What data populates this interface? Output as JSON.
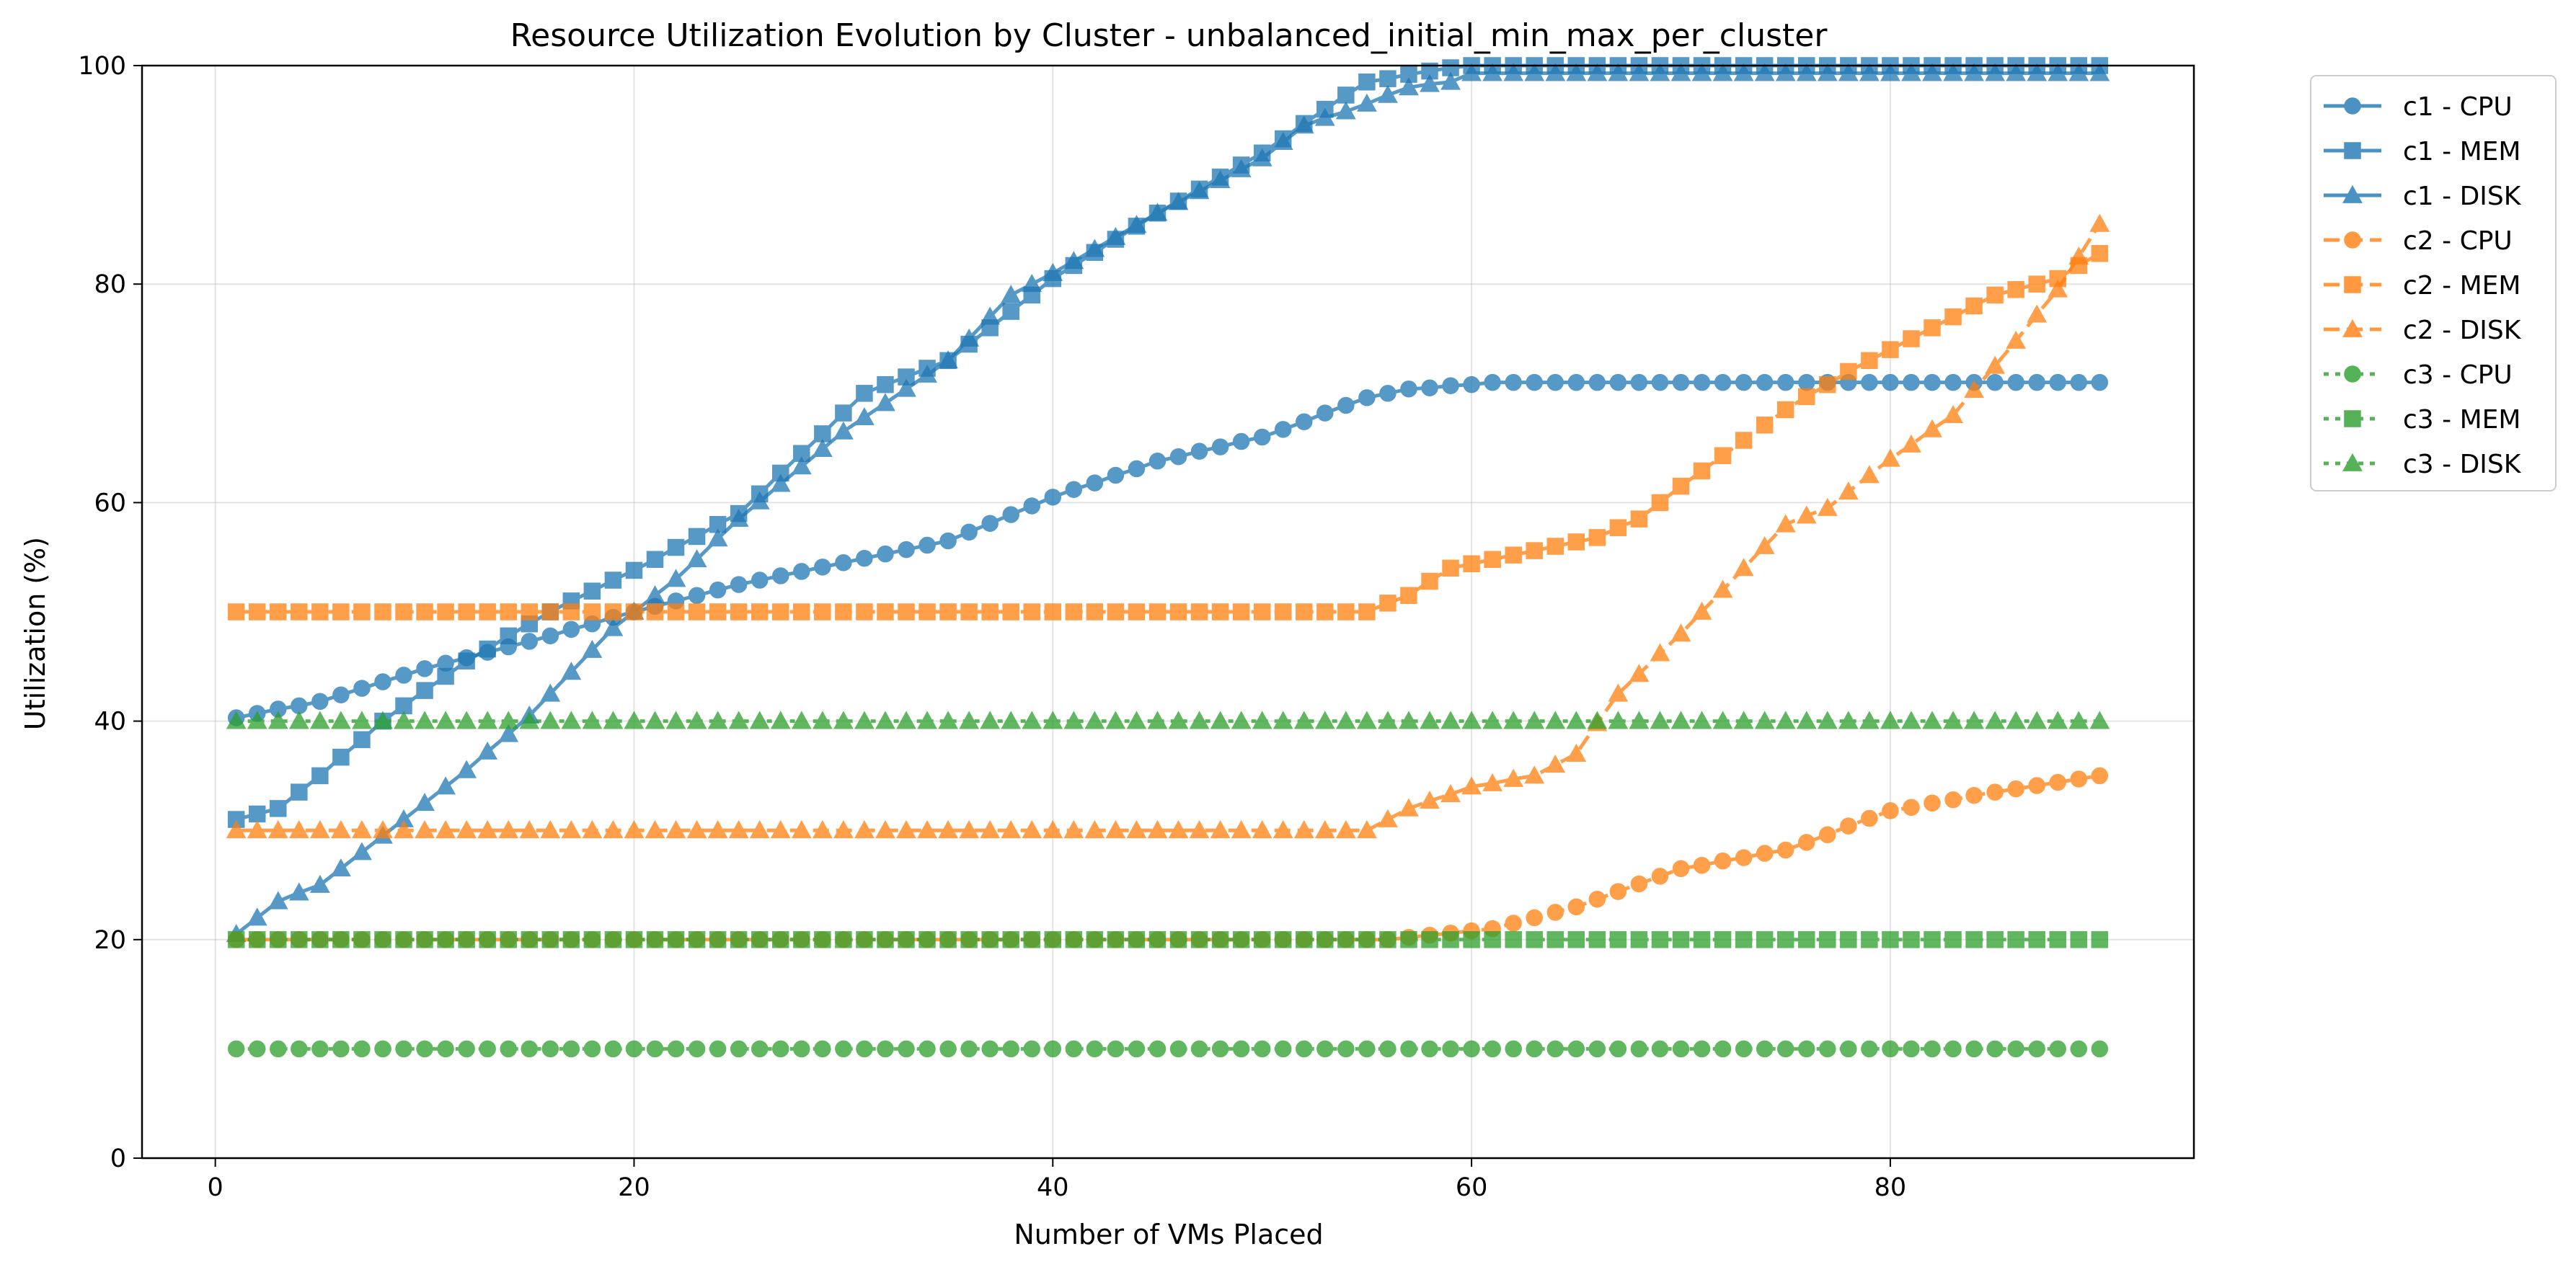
{
  "chart_data": {
    "type": "line",
    "title": "Resource Utilization Evolution by Cluster - unbalanced_initial_min_max_per_cluster",
    "xlabel": "Number of VMs Placed",
    "ylabel": "Utilization (%)",
    "xlim": [
      -3.5,
      94.5
    ],
    "ylim": [
      0,
      100
    ],
    "xticks": [
      0,
      20,
      40,
      60,
      80
    ],
    "yticks": [
      0,
      20,
      40,
      60,
      80,
      100
    ],
    "grid": true,
    "legend_position": "outside-top-right",
    "x_start": 1,
    "x_end": 90,
    "series": [
      {
        "name": "c1 - CPU",
        "color": "#1f77b4",
        "marker": "circle",
        "dash": "solid",
        "keypoints": [
          [
            1,
            40.3
          ],
          [
            5,
            41.8
          ],
          [
            10,
            44.8
          ],
          [
            15,
            47.3
          ],
          [
            20,
            50.0
          ],
          [
            25,
            52.5
          ],
          [
            30,
            54.5
          ],
          [
            35,
            56.5
          ],
          [
            40,
            60.5
          ],
          [
            45,
            63.8
          ],
          [
            50,
            66.0
          ],
          [
            55,
            69.6
          ],
          [
            57,
            70.4
          ],
          [
            60,
            70.8
          ],
          [
            61,
            71.0
          ],
          [
            90,
            71.0
          ]
        ]
      },
      {
        "name": "c1 - MEM",
        "color": "#1f77b4",
        "marker": "square",
        "dash": "solid",
        "keypoints": [
          [
            1,
            31.0
          ],
          [
            3,
            32.0
          ],
          [
            5,
            35.0
          ],
          [
            8,
            40.0
          ],
          [
            12,
            45.5
          ],
          [
            16,
            50.0
          ],
          [
            20,
            53.8
          ],
          [
            25,
            59.0
          ],
          [
            31,
            70.0
          ],
          [
            35,
            73.0
          ],
          [
            40,
            80.5
          ],
          [
            45,
            86.5
          ],
          [
            50,
            92.0
          ],
          [
            53,
            96.0
          ],
          [
            55,
            98.5
          ],
          [
            58,
            99.5
          ],
          [
            60,
            100
          ],
          [
            90,
            100
          ]
        ]
      },
      {
        "name": "c1 - DISK",
        "color": "#1f77b4",
        "marker": "triangle",
        "dash": "solid",
        "keypoints": [
          [
            1,
            20.5
          ],
          [
            3,
            23.5
          ],
          [
            5,
            25.0
          ],
          [
            8,
            29.5
          ],
          [
            12,
            35.5
          ],
          [
            15,
            40.5
          ],
          [
            19,
            48.5
          ],
          [
            22,
            53.0
          ],
          [
            25,
            58.5
          ],
          [
            30,
            66.5
          ],
          [
            35,
            73.0
          ],
          [
            38,
            79.0
          ],
          [
            40,
            81.0
          ],
          [
            45,
            86.5
          ],
          [
            50,
            91.5
          ],
          [
            52,
            94.5
          ],
          [
            55,
            96.5
          ],
          [
            57,
            98.0
          ],
          [
            59,
            98.5
          ],
          [
            60,
            99.3
          ],
          [
            90,
            99.3
          ]
        ]
      },
      {
        "name": "c2 - CPU",
        "color": "#ff7f0e",
        "marker": "circle",
        "dash": "dashed",
        "keypoints": [
          [
            1,
            20.0
          ],
          [
            56,
            20.0
          ],
          [
            61,
            21.0
          ],
          [
            65,
            23.0
          ],
          [
            70,
            26.5
          ],
          [
            75,
            28.2
          ],
          [
            80,
            31.8
          ],
          [
            85,
            33.5
          ],
          [
            90,
            35.0
          ]
        ]
      },
      {
        "name": "c2 - MEM",
        "color": "#ff7f0e",
        "marker": "square",
        "dash": "dashed",
        "keypoints": [
          [
            1,
            50.0
          ],
          [
            55,
            50.0
          ],
          [
            57,
            51.5
          ],
          [
            59,
            54.0
          ],
          [
            62,
            55.2
          ],
          [
            66,
            56.8
          ],
          [
            68,
            58.5
          ],
          [
            70,
            61.5
          ],
          [
            75,
            68.5
          ],
          [
            78,
            72.0
          ],
          [
            80,
            74.0
          ],
          [
            85,
            79.0
          ],
          [
            88,
            80.5
          ],
          [
            90,
            82.8
          ]
        ]
      },
      {
        "name": "c2 - DISK",
        "color": "#ff7f0e",
        "marker": "triangle",
        "dash": "dashed",
        "keypoints": [
          [
            1,
            30.0
          ],
          [
            55,
            30.0
          ],
          [
            57,
            32.0
          ],
          [
            60,
            34.0
          ],
          [
            63,
            35.0
          ],
          [
            65,
            37.0
          ],
          [
            67,
            42.5
          ],
          [
            70,
            48.0
          ],
          [
            75,
            58.0
          ],
          [
            77,
            59.5
          ],
          [
            80,
            64.0
          ],
          [
            83,
            68.0
          ],
          [
            85,
            72.5
          ],
          [
            88,
            79.5
          ],
          [
            90,
            85.5
          ]
        ]
      },
      {
        "name": "c3 - CPU",
        "color": "#2ca02c",
        "marker": "circle",
        "dash": "dotted",
        "keypoints": [
          [
            1,
            10.0
          ],
          [
            90,
            10.0
          ]
        ]
      },
      {
        "name": "c3 - MEM",
        "color": "#2ca02c",
        "marker": "square",
        "dash": "dotted",
        "keypoints": [
          [
            1,
            20.0
          ],
          [
            90,
            20.0
          ]
        ]
      },
      {
        "name": "c3 - DISK",
        "color": "#2ca02c",
        "marker": "triangle",
        "dash": "dotted",
        "keypoints": [
          [
            1,
            40.0
          ],
          [
            90,
            40.0
          ]
        ]
      }
    ]
  }
}
